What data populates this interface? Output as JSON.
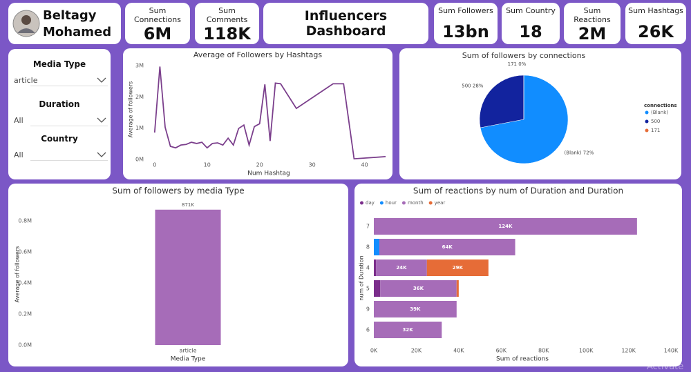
{
  "profile": {
    "first_name": "Beltagy",
    "last_name": "Mohamed"
  },
  "title": "Influencers Dashboard",
  "cards": [
    {
      "label": "Sum Connections",
      "value": "6M"
    },
    {
      "label": "Sum Comments",
      "value": "118K"
    },
    {
      "label": "Sum Followers",
      "value": "13bn"
    },
    {
      "label": "Sum Country",
      "value": "18"
    },
    {
      "label": "Sum Reactions",
      "value": "2M"
    },
    {
      "label": "Sum Hashtags",
      "value": "26K"
    }
  ],
  "slicers": [
    {
      "label": "Media Type",
      "value": "article"
    },
    {
      "label": "Duration",
      "value": "All"
    },
    {
      "label": "Country",
      "value": "All"
    }
  ],
  "watermark": "Activate",
  "chart_data": [
    {
      "type": "line",
      "title": "Average of Followers by Hashtags",
      "xlabel": "Num Hashtag",
      "ylabel": "Average of followers",
      "x": [
        0,
        1,
        2,
        3,
        4,
        5,
        6,
        7,
        8,
        9,
        10,
        11,
        12,
        13,
        14,
        15,
        16,
        17,
        18,
        19,
        20,
        21,
        22,
        23,
        24,
        27,
        34,
        36,
        38,
        44
      ],
      "values": [
        860000,
        2970000,
        1030000,
        420000,
        370000,
        460000,
        480000,
        550000,
        510000,
        550000,
        370000,
        510000,
        530000,
        460000,
        680000,
        460000,
        990000,
        1100000,
        460000,
        1050000,
        1140000,
        2400000,
        590000,
        2440000,
        2420000,
        1630000,
        2420000,
        2420000,
        20000,
        90000
      ],
      "color": "#7b3f8c",
      "xlim": [
        -0.5,
        44
      ],
      "xticks": [
        0,
        10,
        20,
        30,
        40
      ],
      "ylim": [
        0,
        3200000
      ],
      "yticks": [
        {
          "value": 0,
          "label": "0M"
        },
        {
          "value": 1000000,
          "label": "1M"
        },
        {
          "value": 2000000,
          "label": "2M"
        },
        {
          "value": 3000000,
          "label": "3M"
        }
      ],
      "grid": false
    },
    {
      "type": "pie",
      "title": "Sum of followers by connections",
      "legend_title": "connections",
      "legend": "right",
      "categories": [
        "(Blank)",
        "500",
        "171"
      ],
      "values": [
        72,
        28,
        0
      ],
      "value_labels": [
        "72%",
        "28%",
        "0%"
      ],
      "colors": [
        "#118dff",
        "#12239e",
        "#e66c37"
      ]
    },
    {
      "type": "bar",
      "title": "Sum of followers by media Type",
      "xlabel": "Media Type",
      "ylabel": "Average of followers",
      "categories": [
        "article"
      ],
      "values": [
        871000
      ],
      "value_labels": [
        "871K"
      ],
      "color": "#a66cb8",
      "ylim": [
        0,
        910000
      ],
      "yticks": [
        {
          "value": 0,
          "label": "0.0M"
        },
        {
          "value": 200000,
          "label": "0.2M"
        },
        {
          "value": 400000,
          "label": "0.4M"
        },
        {
          "value": 600000,
          "label": "0.6M"
        },
        {
          "value": 800000,
          "label": "0.8M"
        }
      ],
      "grid": false
    },
    {
      "type": "barh",
      "title": "Sum of reactions by num of Duration and Duration",
      "xlabel": "Sum of reactions",
      "ylabel": "num of Duration",
      "legend": "top-left",
      "categories": [
        "7",
        "8",
        "4",
        "5",
        "9",
        "6"
      ],
      "series": [
        {
          "name": "day",
          "color": "#7b2d8b",
          "values": [
            null,
            null,
            1000,
            3000,
            null,
            null
          ]
        },
        {
          "name": "hour",
          "color": "#118dff",
          "values": [
            null,
            2600,
            null,
            null,
            null,
            null
          ]
        },
        {
          "name": "month",
          "color": "#a66cb8",
          "values": [
            124000,
            64000,
            24000,
            36000,
            39000,
            32000
          ],
          "value_labels": [
            "124K",
            "64K",
            "24K",
            "36K",
            "39K",
            "32K"
          ]
        },
        {
          "name": "year",
          "color": "#e66c37",
          "values": [
            null,
            null,
            29000,
            1000,
            null,
            null
          ],
          "value_labels": [
            null,
            null,
            "29K",
            null,
            null,
            null
          ]
        }
      ],
      "xlim": [
        0,
        140000
      ],
      "xticks": [
        {
          "value": 0,
          "label": "0K"
        },
        {
          "value": 20000,
          "label": "20K"
        },
        {
          "value": 40000,
          "label": "40K"
        },
        {
          "value": 60000,
          "label": "60K"
        },
        {
          "value": 80000,
          "label": "80K"
        },
        {
          "value": 100000,
          "label": "100K"
        },
        {
          "value": 120000,
          "label": "120K"
        },
        {
          "value": 140000,
          "label": "140K"
        }
      ],
      "grid": false
    }
  ]
}
